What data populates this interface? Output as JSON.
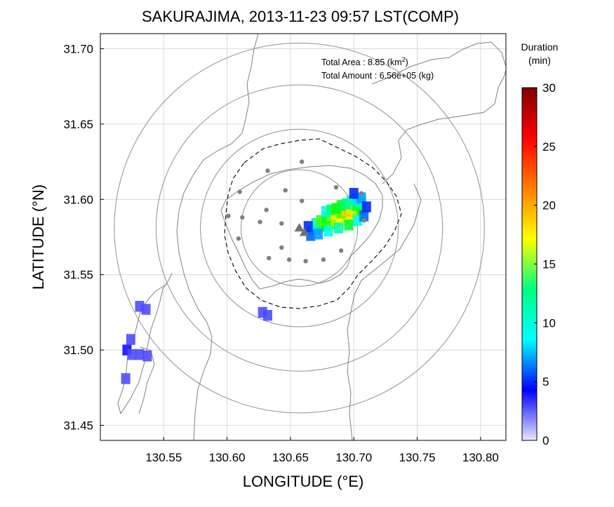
{
  "chart_data": {
    "type": "heatmap",
    "title": "SAKURAJIMA, 2013-11-23 09:57 LST(COMP)",
    "xlabel": "LONGITUDE (°E)",
    "ylabel": "LATITUDE (°N)",
    "xlim": [
      130.5,
      130.82
    ],
    "ylim": [
      31.44,
      31.71
    ],
    "x_ticks": [
      130.55,
      130.6,
      130.65,
      130.7,
      130.75,
      130.8
    ],
    "x_tick_labels": [
      "130.55",
      "130.60",
      "130.65",
      "130.70",
      "130.75",
      "130.80"
    ],
    "y_ticks": [
      31.45,
      31.5,
      31.55,
      31.6,
      31.65,
      31.7
    ],
    "y_tick_labels": [
      "31.45",
      "31.50",
      "31.55",
      "31.60",
      "31.65",
      "31.70"
    ],
    "grid": true,
    "annotations": {
      "area_label": "Total Area   : 8.85 (km",
      "area_sup": "2",
      "area_close": ")",
      "amount_label": "Total Amount : 6.56e+05 (kg)"
    },
    "colorbar": {
      "title_line1": "Duration",
      "title_line2": "(min)",
      "range": [
        0,
        30
      ],
      "ticks": [
        0,
        5,
        10,
        15,
        20,
        25,
        30
      ],
      "tick_labels": [
        "0",
        "5",
        "10",
        "15",
        "20",
        "25",
        "30"
      ],
      "colors": [
        "#ffffff",
        "#0000ff",
        "#00ffff",
        "#00ff00",
        "#ffff00",
        "#ff8000",
        "#ff0000",
        "#800000"
      ]
    },
    "range_rings_center": [
      130.657,
      31.581
    ],
    "range_rings_radius_deg": [
      0.046,
      0.078,
      0.113,
      0.146
    ],
    "eruption_vents": [
      [
        130.657,
        31.581
      ],
      [
        130.661,
        31.578
      ]
    ],
    "stations": [
      [
        130.632,
        31.619
      ],
      [
        130.659,
        31.625
      ],
      [
        130.61,
        31.605
      ],
      [
        130.686,
        31.608
      ],
      [
        130.706,
        31.604
      ],
      [
        130.646,
        31.606
      ],
      [
        130.659,
        31.599
      ],
      [
        130.601,
        31.589
      ],
      [
        130.612,
        31.588
      ],
      [
        130.631,
        31.593
      ],
      [
        130.626,
        31.585
      ],
      [
        130.643,
        31.584
      ],
      [
        130.609,
        31.574
      ],
      [
        130.643,
        31.568
      ],
      [
        130.633,
        31.561
      ],
      [
        130.649,
        31.56
      ],
      [
        130.662,
        31.559
      ],
      [
        130.676,
        31.56
      ],
      [
        130.69,
        31.566
      ],
      [
        130.708,
        31.586
      ]
    ],
    "duration_cells": [
      {
        "lon": 130.666,
        "lat": 31.579,
        "min": 9
      },
      {
        "lon": 130.67,
        "lat": 31.58,
        "min": 11
      },
      {
        "lon": 130.674,
        "lat": 31.582,
        "min": 12
      },
      {
        "lon": 130.678,
        "lat": 31.583,
        "min": 13
      },
      {
        "lon": 130.682,
        "lat": 31.584,
        "min": 14
      },
      {
        "lon": 130.686,
        "lat": 31.585,
        "min": 16
      },
      {
        "lon": 130.69,
        "lat": 31.586,
        "min": 17
      },
      {
        "lon": 130.694,
        "lat": 31.587,
        "min": 16
      },
      {
        "lon": 130.698,
        "lat": 31.589,
        "min": 18
      },
      {
        "lon": 130.702,
        "lat": 31.591,
        "min": 15
      },
      {
        "lon": 130.706,
        "lat": 31.593,
        "min": 13
      },
      {
        "lon": 130.67,
        "lat": 31.584,
        "min": 10
      },
      {
        "lon": 130.674,
        "lat": 31.586,
        "min": 14
      },
      {
        "lon": 130.678,
        "lat": 31.588,
        "min": 12
      },
      {
        "lon": 130.682,
        "lat": 31.589,
        "min": 15
      },
      {
        "lon": 130.686,
        "lat": 31.59,
        "min": 18
      },
      {
        "lon": 130.69,
        "lat": 31.591,
        "min": 14
      },
      {
        "lon": 130.694,
        "lat": 31.592,
        "min": 19
      },
      {
        "lon": 130.698,
        "lat": 31.594,
        "min": 16
      },
      {
        "lon": 130.702,
        "lat": 31.596,
        "min": 12
      },
      {
        "lon": 130.706,
        "lat": 31.598,
        "min": 10
      },
      {
        "lon": 130.678,
        "lat": 31.592,
        "min": 9
      },
      {
        "lon": 130.682,
        "lat": 31.593,
        "min": 11
      },
      {
        "lon": 130.686,
        "lat": 31.594,
        "min": 13
      },
      {
        "lon": 130.69,
        "lat": 31.596,
        "min": 12
      },
      {
        "lon": 130.694,
        "lat": 31.597,
        "min": 11
      },
      {
        "lon": 130.698,
        "lat": 31.599,
        "min": 10
      },
      {
        "lon": 130.702,
        "lat": 31.6,
        "min": 8
      },
      {
        "lon": 130.706,
        "lat": 31.601,
        "min": 7
      },
      {
        "lon": 130.666,
        "lat": 31.576,
        "min": 6
      },
      {
        "lon": 130.672,
        "lat": 31.577,
        "min": 7
      },
      {
        "lon": 130.68,
        "lat": 31.579,
        "min": 9
      },
      {
        "lon": 130.688,
        "lat": 31.581,
        "min": 10
      },
      {
        "lon": 130.696,
        "lat": 31.583,
        "min": 12
      },
      {
        "lon": 130.703,
        "lat": 31.586,
        "min": 9
      },
      {
        "lon": 130.708,
        "lat": 31.589,
        "min": 6
      },
      {
        "lon": 130.71,
        "lat": 31.595,
        "min": 5
      },
      {
        "lon": 130.7,
        "lat": 31.604,
        "min": 5
      },
      {
        "lon": 130.664,
        "lat": 31.582,
        "min": 5
      },
      {
        "lon": 130.521,
        "lat": 31.5,
        "min": 4
      },
      {
        "lon": 130.525,
        "lat": 31.497,
        "min": 3
      },
      {
        "lon": 130.524,
        "lat": 31.507,
        "min": 3
      },
      {
        "lon": 130.531,
        "lat": 31.497,
        "min": 3
      },
      {
        "lon": 130.537,
        "lat": 31.496,
        "min": 3
      },
      {
        "lon": 130.52,
        "lat": 31.481,
        "min": 3
      },
      {
        "lon": 130.531,
        "lat": 31.529,
        "min": 3
      },
      {
        "lon": 130.536,
        "lat": 31.527,
        "min": 3
      },
      {
        "lon": 130.628,
        "lat": 31.525,
        "min": 3
      },
      {
        "lon": 130.632,
        "lat": 31.523,
        "min": 3
      }
    ]
  }
}
